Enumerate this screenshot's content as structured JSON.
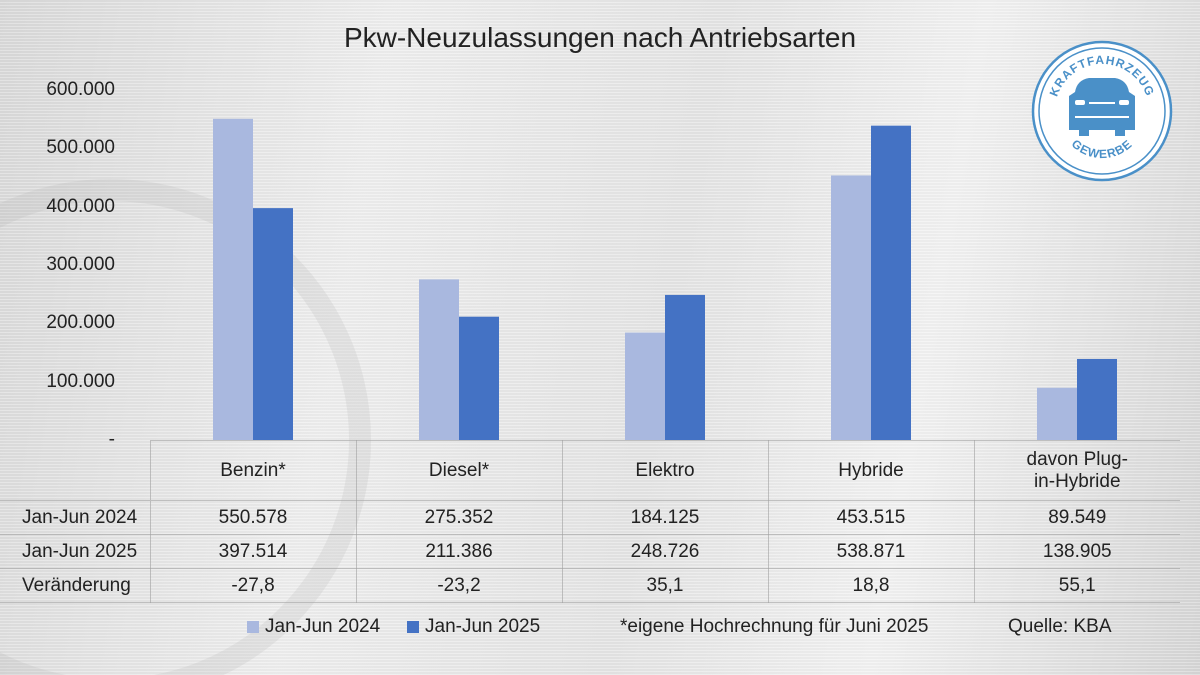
{
  "chart_data": {
    "type": "bar",
    "title": "Pkw-Neuzulassungen nach Antriebsarten",
    "categories": [
      "Benzin*",
      "Diesel*",
      "Elektro",
      "Hybride",
      "davon Plug-in-Hybride"
    ],
    "series": [
      {
        "name": "Jan-Jun 2024",
        "values": [
          550578,
          275352,
          184125,
          453515,
          89549
        ],
        "color": "#a9b8df"
      },
      {
        "name": "Jan-Jun 2025",
        "values": [
          397514,
          211386,
          248726,
          538871,
          138905
        ],
        "color": "#4472c4"
      }
    ],
    "ylim": [
      0,
      600000
    ],
    "yticks": [
      "-",
      "100.000",
      "200.000",
      "300.000",
      "400.000",
      "500.000",
      "600.000"
    ],
    "grid": false,
    "legend": "bottom",
    "table": {
      "rows": [
        {
          "label": "Jan-Jun 2024",
          "values": [
            "550.578",
            "275.352",
            "184.125",
            "453.515",
            "89.549"
          ]
        },
        {
          "label": "Jan-Jun 2025",
          "values": [
            "397.514",
            "211.386",
            "248.726",
            "538.871",
            "138.905"
          ]
        },
        {
          "label": "Veränderung",
          "values": [
            "-27,8",
            "-23,2",
            "35,1",
            "18,8",
            "55,1"
          ]
        }
      ]
    }
  },
  "footnote": "*eigene Hochrechnung für Juni 2025",
  "source": "Quelle: KBA",
  "logo": {
    "top_text": "KRAFTFAHRZEUG",
    "bottom_text": "GEWERBE",
    "color": "#4a90c8"
  }
}
